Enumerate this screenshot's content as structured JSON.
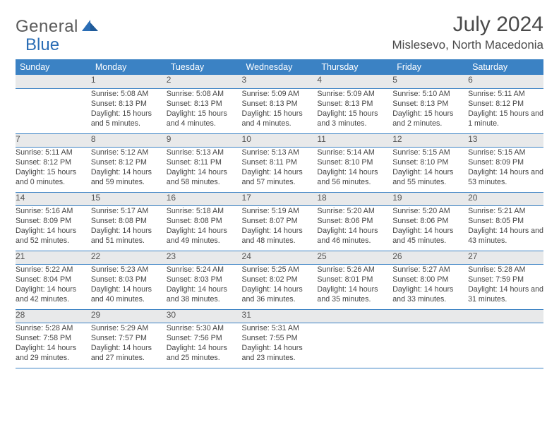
{
  "brand": {
    "name1": "General",
    "name2": "Blue"
  },
  "title": "July 2024",
  "location": "Mislesevo, North Macedonia",
  "header_bg": "#3b82c4",
  "daynum_bg": "#e8e9ea",
  "days_of_week": [
    "Sunday",
    "Monday",
    "Tuesday",
    "Wednesday",
    "Thursday",
    "Friday",
    "Saturday"
  ],
  "weeks": [
    {
      "nums": [
        "",
        "1",
        "2",
        "3",
        "4",
        "5",
        "6"
      ],
      "cells": [
        "",
        "Sunrise: 5:08 AM\nSunset: 8:13 PM\nDaylight: 15 hours and 5 minutes.",
        "Sunrise: 5:08 AM\nSunset: 8:13 PM\nDaylight: 15 hours and 4 minutes.",
        "Sunrise: 5:09 AM\nSunset: 8:13 PM\nDaylight: 15 hours and 4 minutes.",
        "Sunrise: 5:09 AM\nSunset: 8:13 PM\nDaylight: 15 hours and 3 minutes.",
        "Sunrise: 5:10 AM\nSunset: 8:13 PM\nDaylight: 15 hours and 2 minutes.",
        "Sunrise: 5:11 AM\nSunset: 8:12 PM\nDaylight: 15 hours and 1 minute."
      ]
    },
    {
      "nums": [
        "7",
        "8",
        "9",
        "10",
        "11",
        "12",
        "13"
      ],
      "cells": [
        "Sunrise: 5:11 AM\nSunset: 8:12 PM\nDaylight: 15 hours and 0 minutes.",
        "Sunrise: 5:12 AM\nSunset: 8:12 PM\nDaylight: 14 hours and 59 minutes.",
        "Sunrise: 5:13 AM\nSunset: 8:11 PM\nDaylight: 14 hours and 58 minutes.",
        "Sunrise: 5:13 AM\nSunset: 8:11 PM\nDaylight: 14 hours and 57 minutes.",
        "Sunrise: 5:14 AM\nSunset: 8:10 PM\nDaylight: 14 hours and 56 minutes.",
        "Sunrise: 5:15 AM\nSunset: 8:10 PM\nDaylight: 14 hours and 55 minutes.",
        "Sunrise: 5:15 AM\nSunset: 8:09 PM\nDaylight: 14 hours and 53 minutes."
      ]
    },
    {
      "nums": [
        "14",
        "15",
        "16",
        "17",
        "18",
        "19",
        "20"
      ],
      "cells": [
        "Sunrise: 5:16 AM\nSunset: 8:09 PM\nDaylight: 14 hours and 52 minutes.",
        "Sunrise: 5:17 AM\nSunset: 8:08 PM\nDaylight: 14 hours and 51 minutes.",
        "Sunrise: 5:18 AM\nSunset: 8:08 PM\nDaylight: 14 hours and 49 minutes.",
        "Sunrise: 5:19 AM\nSunset: 8:07 PM\nDaylight: 14 hours and 48 minutes.",
        "Sunrise: 5:20 AM\nSunset: 8:06 PM\nDaylight: 14 hours and 46 minutes.",
        "Sunrise: 5:20 AM\nSunset: 8:06 PM\nDaylight: 14 hours and 45 minutes.",
        "Sunrise: 5:21 AM\nSunset: 8:05 PM\nDaylight: 14 hours and 43 minutes."
      ]
    },
    {
      "nums": [
        "21",
        "22",
        "23",
        "24",
        "25",
        "26",
        "27"
      ],
      "cells": [
        "Sunrise: 5:22 AM\nSunset: 8:04 PM\nDaylight: 14 hours and 42 minutes.",
        "Sunrise: 5:23 AM\nSunset: 8:03 PM\nDaylight: 14 hours and 40 minutes.",
        "Sunrise: 5:24 AM\nSunset: 8:03 PM\nDaylight: 14 hours and 38 minutes.",
        "Sunrise: 5:25 AM\nSunset: 8:02 PM\nDaylight: 14 hours and 36 minutes.",
        "Sunrise: 5:26 AM\nSunset: 8:01 PM\nDaylight: 14 hours and 35 minutes.",
        "Sunrise: 5:27 AM\nSunset: 8:00 PM\nDaylight: 14 hours and 33 minutes.",
        "Sunrise: 5:28 AM\nSunset: 7:59 PM\nDaylight: 14 hours and 31 minutes."
      ]
    },
    {
      "nums": [
        "28",
        "29",
        "30",
        "31",
        "",
        "",
        ""
      ],
      "cells": [
        "Sunrise: 5:28 AM\nSunset: 7:58 PM\nDaylight: 14 hours and 29 minutes.",
        "Sunrise: 5:29 AM\nSunset: 7:57 PM\nDaylight: 14 hours and 27 minutes.",
        "Sunrise: 5:30 AM\nSunset: 7:56 PM\nDaylight: 14 hours and 25 minutes.",
        "Sunrise: 5:31 AM\nSunset: 7:55 PM\nDaylight: 14 hours and 23 minutes.",
        "",
        "",
        ""
      ]
    }
  ]
}
